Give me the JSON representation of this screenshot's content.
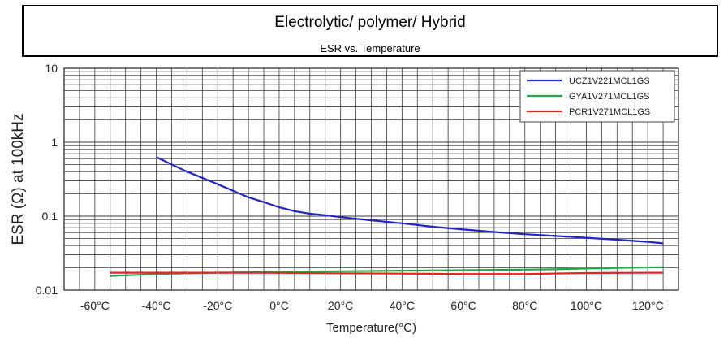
{
  "header": {
    "title": "Electrolytic/ polymer/ Hybrid",
    "subtitle": "ESR vs. Temperature"
  },
  "chart_data": {
    "type": "line",
    "xlabel": "Temperature(°C)",
    "ylabel": "ESR (Ω) at 100kHz",
    "xlim": [
      -70,
      130
    ],
    "ylim": [
      0.01,
      10
    ],
    "yscale": "log",
    "grid": true,
    "legend_position": "top-right",
    "x_ticks": [
      -60,
      -40,
      -20,
      0,
      20,
      40,
      60,
      80,
      100,
      120
    ],
    "x_tick_labels": [
      "-60°C",
      "-40°C",
      "-20°C",
      "0°C",
      "20°C",
      "40°C",
      "60°C",
      "80°C",
      "100°C",
      "120°C"
    ],
    "y_ticks": [
      0.01,
      0.1,
      1,
      10
    ],
    "y_tick_labels": [
      "0.01",
      "0.1",
      "1",
      "10"
    ],
    "series": [
      {
        "name": "UCZ1V221MCL1GS",
        "color": "#2424c8",
        "x": [
          -40,
          -35,
          -30,
          -25,
          -20,
          -15,
          -10,
          -5,
          0,
          5,
          10,
          15,
          20,
          30,
          40,
          50,
          60,
          70,
          80,
          90,
          100,
          110,
          120,
          125
        ],
        "y": [
          0.63,
          0.5,
          0.4,
          0.33,
          0.27,
          0.22,
          0.18,
          0.155,
          0.132,
          0.117,
          0.108,
          0.103,
          0.097,
          0.088,
          0.08,
          0.072,
          0.066,
          0.061,
          0.057,
          0.054,
          0.051,
          0.048,
          0.045,
          0.043
        ]
      },
      {
        "name": "GYA1V271MCL1GS",
        "color": "#22a84a",
        "x": [
          -55,
          -40,
          -20,
          0,
          20,
          40,
          60,
          80,
          90,
          100,
          110,
          120,
          125
        ],
        "y": [
          0.0155,
          0.0165,
          0.0172,
          0.0177,
          0.018,
          0.0183,
          0.0186,
          0.0189,
          0.0191,
          0.0196,
          0.02,
          0.0203,
          0.0204
        ]
      },
      {
        "name": "PCR1V271MCL1GS",
        "color": "#e62222",
        "x": [
          -55,
          -40,
          -20,
          0,
          20,
          40,
          60,
          80,
          100,
          120,
          125
        ],
        "y": [
          0.0172,
          0.0172,
          0.0172,
          0.0171,
          0.0169,
          0.0167,
          0.0165,
          0.0165,
          0.017,
          0.0172,
          0.0172
        ]
      }
    ]
  }
}
